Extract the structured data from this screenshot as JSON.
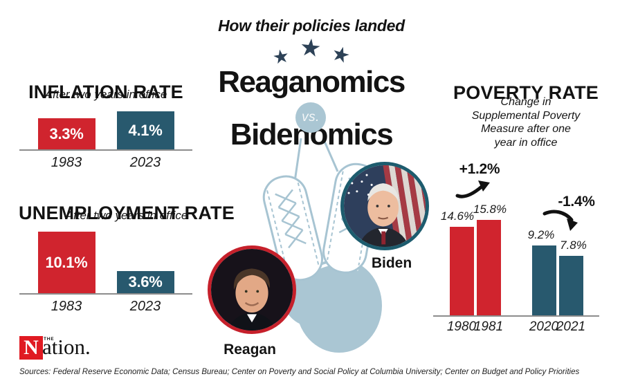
{
  "header": {
    "title": "How their policies landed"
  },
  "icons": {
    "star": "★"
  },
  "matchup": {
    "left_name": "Reaganomics",
    "vs_label": "vs.",
    "right_name": "Bidenomics"
  },
  "portraits": {
    "reagan": {
      "label": "Reagan"
    },
    "biden": {
      "label": "Biden"
    }
  },
  "colors": {
    "reagan_red": "#d0242e",
    "biden_teal": "#28596e",
    "light_blue": "#aac6d3",
    "star_navy": "#2d4257",
    "logo_red": "#e01a22",
    "axis_gray": "#8c8c8c"
  },
  "chart_data": [
    {
      "id": "inflation",
      "type": "bar",
      "title": "INFLATION RATE",
      "subtitle": "After two years in office",
      "categories": [
        "1983",
        "2023"
      ],
      "values": [
        3.3,
        4.1
      ],
      "value_labels": [
        "3.3%",
        "4.1%"
      ],
      "series_colors": [
        "#d0242e",
        "#28596e"
      ],
      "label_position": "inside",
      "ylim": [
        0,
        5
      ],
      "grid": false,
      "legend": false
    },
    {
      "id": "unemployment",
      "type": "bar",
      "title": "UNEMPLOYMENT RATE",
      "subtitle": "After two years in office",
      "categories": [
        "1983",
        "2023"
      ],
      "values": [
        10.1,
        3.6
      ],
      "value_labels": [
        "10.1%",
        "3.6%"
      ],
      "series_colors": [
        "#d0242e",
        "#28596e"
      ],
      "label_position": "inside",
      "ylim": [
        0,
        11
      ],
      "grid": false,
      "legend": false
    },
    {
      "id": "poverty",
      "type": "bar",
      "title": "POVERTY RATE",
      "subtitle": "Change in Supplemental Poverty Measure after one year in office",
      "subtitle_lines": [
        "Change in",
        "Supplemental Poverty",
        "Measure after one",
        "year in office"
      ],
      "categories": [
        "1980",
        "1981",
        "2020",
        "2021"
      ],
      "values": [
        14.6,
        15.8,
        9.2,
        7.8
      ],
      "value_labels": [
        "14.6%",
        "15.8%",
        "9.2%",
        "7.8%"
      ],
      "series_colors": [
        "#d0242e",
        "#d0242e",
        "#28596e",
        "#28596e"
      ],
      "label_position": "above",
      "ylim": [
        0,
        16
      ],
      "grid": false,
      "legend": false,
      "annotations": [
        {
          "text": "+1.2%",
          "target": "1980→1981",
          "direction": "up"
        },
        {
          "text": "-1.4%",
          "target": "2020→2021",
          "direction": "down"
        }
      ]
    }
  ],
  "footer": {
    "logo_the": "THE",
    "logo_initial": "N",
    "logo_rest": "ation.",
    "sources": "Sources: Federal Reserve Economic Data; Census Bureau; Center on Poverty and Social Policy at Columbia University; Center on Budget and Policy Priorities"
  }
}
